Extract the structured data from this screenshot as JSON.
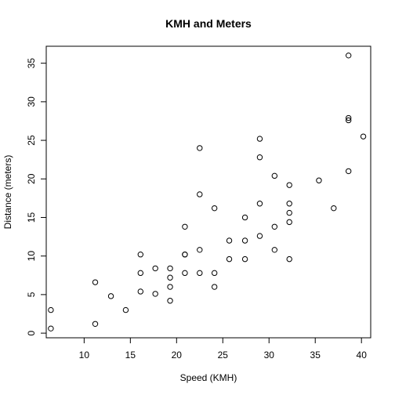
{
  "chart_data": {
    "type": "scatter",
    "title": "KMH and Meters",
    "xlabel": "Speed (KMH)",
    "ylabel": "Distance (meters)",
    "xlim": [
      5.9,
      41.0
    ],
    "ylim": [
      -0.6,
      37.2
    ],
    "xticks": [
      10,
      15,
      20,
      25,
      30,
      35,
      40
    ],
    "yticks": [
      0,
      5,
      10,
      15,
      20,
      25,
      30,
      35
    ],
    "grid": false,
    "legend": "none",
    "points": [
      {
        "x": 6.4,
        "y": 0.6
      },
      {
        "x": 6.4,
        "y": 3.0
      },
      {
        "x": 11.2,
        "y": 1.2
      },
      {
        "x": 11.2,
        "y": 6.6
      },
      {
        "x": 12.9,
        "y": 4.8
      },
      {
        "x": 14.5,
        "y": 3.0
      },
      {
        "x": 16.1,
        "y": 5.4
      },
      {
        "x": 16.1,
        "y": 7.8
      },
      {
        "x": 16.1,
        "y": 10.2
      },
      {
        "x": 17.7,
        "y": 5.1
      },
      {
        "x": 17.7,
        "y": 8.4
      },
      {
        "x": 19.3,
        "y": 4.2
      },
      {
        "x": 19.3,
        "y": 6.0
      },
      {
        "x": 19.3,
        "y": 7.2
      },
      {
        "x": 19.3,
        "y": 8.4
      },
      {
        "x": 20.9,
        "y": 7.8
      },
      {
        "x": 20.9,
        "y": 10.2
      },
      {
        "x": 20.9,
        "y": 10.2
      },
      {
        "x": 20.9,
        "y": 13.8
      },
      {
        "x": 22.5,
        "y": 7.8
      },
      {
        "x": 22.5,
        "y": 10.8
      },
      {
        "x": 22.5,
        "y": 18.0
      },
      {
        "x": 22.5,
        "y": 24.0
      },
      {
        "x": 24.1,
        "y": 6.0
      },
      {
        "x": 24.1,
        "y": 7.8
      },
      {
        "x": 24.1,
        "y": 16.2
      },
      {
        "x": 25.7,
        "y": 9.6
      },
      {
        "x": 25.7,
        "y": 12.0
      },
      {
        "x": 27.4,
        "y": 9.6
      },
      {
        "x": 27.4,
        "y": 12.0
      },
      {
        "x": 27.4,
        "y": 15.0
      },
      {
        "x": 29.0,
        "y": 12.6
      },
      {
        "x": 29.0,
        "y": 16.8
      },
      {
        "x": 29.0,
        "y": 22.8
      },
      {
        "x": 29.0,
        "y": 25.2
      },
      {
        "x": 30.6,
        "y": 10.8
      },
      {
        "x": 30.6,
        "y": 13.8
      },
      {
        "x": 30.6,
        "y": 20.4
      },
      {
        "x": 32.2,
        "y": 9.6
      },
      {
        "x": 32.2,
        "y": 14.4
      },
      {
        "x": 32.2,
        "y": 15.6
      },
      {
        "x": 32.2,
        "y": 16.8
      },
      {
        "x": 32.2,
        "y": 19.2
      },
      {
        "x": 35.4,
        "y": 19.8
      },
      {
        "x": 37.0,
        "y": 16.2
      },
      {
        "x": 38.6,
        "y": 21.0
      },
      {
        "x": 38.6,
        "y": 27.6
      },
      {
        "x": 38.6,
        "y": 27.9
      },
      {
        "x": 38.6,
        "y": 36.0
      },
      {
        "x": 40.2,
        "y": 25.5
      }
    ]
  }
}
